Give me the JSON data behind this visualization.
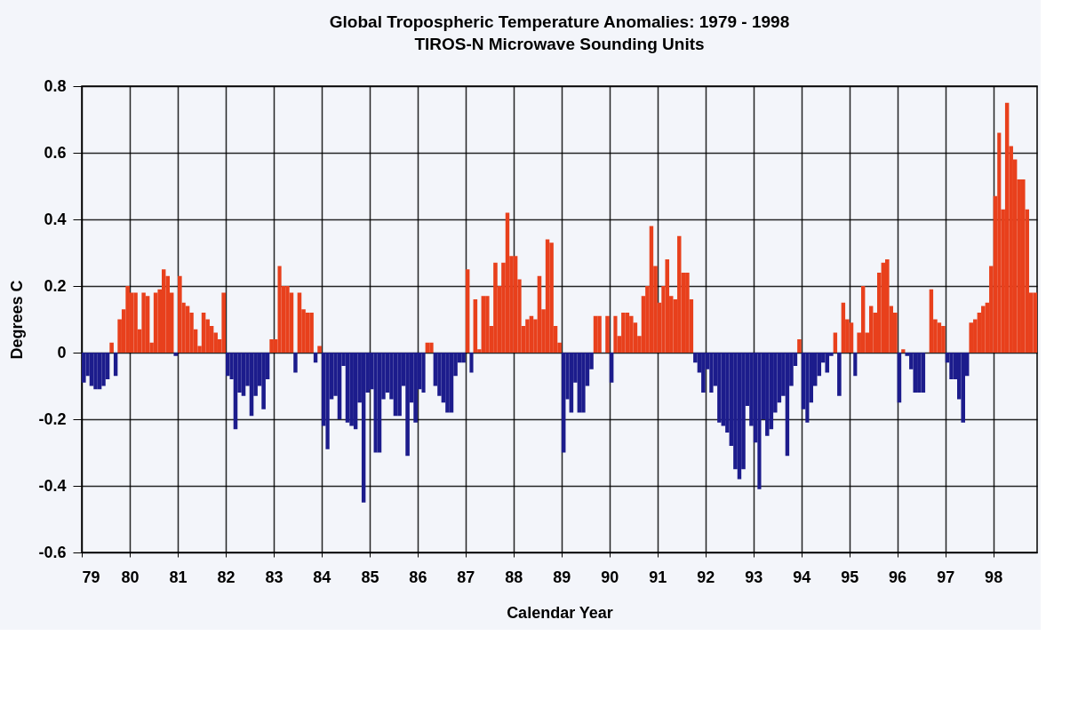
{
  "chart_data": {
    "type": "bar",
    "title": "Global  Tropospheric Temperature Anomalies: 1979 - 1998",
    "subtitle": "TIROS-N Microwave Sounding Units",
    "xlabel": "Calendar Year",
    "ylabel": "Degrees C",
    "x": [
      "1979-01",
      "1979-02",
      "1979-03",
      "1979-04",
      "1979-05",
      "1979-06",
      "1979-07",
      "1979-08",
      "1979-09",
      "1979-10",
      "1979-11",
      "1979-12",
      "1980-01",
      "1980-02",
      "1980-03",
      "1980-04",
      "1980-05",
      "1980-06",
      "1980-07",
      "1980-08",
      "1980-09",
      "1980-10",
      "1980-11",
      "1980-12",
      "1981-01",
      "1981-02",
      "1981-03",
      "1981-04",
      "1981-05",
      "1981-06",
      "1981-07",
      "1981-08",
      "1981-09",
      "1981-10",
      "1981-11",
      "1981-12",
      "1982-01",
      "1982-02",
      "1982-03",
      "1982-04",
      "1982-05",
      "1982-06",
      "1982-07",
      "1982-08",
      "1982-09",
      "1982-10",
      "1982-11",
      "1982-12",
      "1983-01",
      "1983-02",
      "1983-03",
      "1983-04",
      "1983-05",
      "1983-06",
      "1983-07",
      "1983-08",
      "1983-09",
      "1983-10",
      "1983-11",
      "1983-12",
      "1984-01",
      "1984-02",
      "1984-03",
      "1984-04",
      "1984-05",
      "1984-06",
      "1984-07",
      "1984-08",
      "1984-09",
      "1984-10",
      "1984-11",
      "1984-12",
      "1985-01",
      "1985-02",
      "1985-03",
      "1985-04",
      "1985-05",
      "1985-06",
      "1985-07",
      "1985-08",
      "1985-09",
      "1985-10",
      "1985-11",
      "1985-12",
      "1986-01",
      "1986-02",
      "1986-03",
      "1986-04",
      "1986-05",
      "1986-06",
      "1986-07",
      "1986-08",
      "1986-09",
      "1986-10",
      "1986-11",
      "1986-12",
      "1987-01",
      "1987-02",
      "1987-03",
      "1987-04",
      "1987-05",
      "1987-06",
      "1987-07",
      "1987-08",
      "1987-09",
      "1987-10",
      "1987-11",
      "1987-12",
      "1988-01",
      "1988-02",
      "1988-03",
      "1988-04",
      "1988-05",
      "1988-06",
      "1988-07",
      "1988-08",
      "1988-09",
      "1988-10",
      "1988-11",
      "1988-12",
      "1989-01",
      "1989-02",
      "1989-03",
      "1989-04",
      "1989-05",
      "1989-06",
      "1989-07",
      "1989-08",
      "1989-09",
      "1989-10",
      "1989-11",
      "1989-12",
      "1990-01",
      "1990-02",
      "1990-03",
      "1990-04",
      "1990-05",
      "1990-06",
      "1990-07",
      "1990-08",
      "1990-09",
      "1990-10",
      "1990-11",
      "1990-12",
      "1991-01",
      "1991-02",
      "1991-03",
      "1991-04",
      "1991-05",
      "1991-06",
      "1991-07",
      "1991-08",
      "1991-09",
      "1991-10",
      "1991-11",
      "1991-12",
      "1992-01",
      "1992-02",
      "1992-03",
      "1992-04",
      "1992-05",
      "1992-06",
      "1992-07",
      "1992-08",
      "1992-09",
      "1992-10",
      "1992-11",
      "1992-12",
      "1993-01",
      "1993-02",
      "1993-03",
      "1993-04",
      "1993-05",
      "1993-06",
      "1993-07",
      "1993-08",
      "1993-09",
      "1993-10",
      "1993-11",
      "1993-12",
      "1994-01",
      "1994-02",
      "1994-03",
      "1994-04",
      "1994-05",
      "1994-06",
      "1994-07",
      "1994-08",
      "1994-09",
      "1994-10",
      "1994-11",
      "1994-12",
      "1995-01",
      "1995-02",
      "1995-03",
      "1995-04",
      "1995-05",
      "1995-06",
      "1995-07",
      "1995-08",
      "1995-09",
      "1995-10",
      "1995-11",
      "1995-12",
      "1996-01",
      "1996-02",
      "1996-03",
      "1996-04",
      "1996-05",
      "1996-06",
      "1996-07",
      "1996-08",
      "1996-09",
      "1996-10",
      "1996-11",
      "1996-12",
      "1997-01",
      "1997-02",
      "1997-03",
      "1997-04",
      "1997-05",
      "1997-06",
      "1997-07",
      "1997-08",
      "1997-09",
      "1997-10",
      "1997-11",
      "1997-12",
      "1998-01",
      "1998-02",
      "1998-03",
      "1998-04",
      "1998-05",
      "1998-06",
      "1998-07",
      "1998-08",
      "1998-09",
      "1998-10",
      "1998-11"
    ],
    "values": [
      -0.09,
      -0.07,
      -0.1,
      -0.11,
      -0.11,
      -0.1,
      -0.08,
      0.03,
      -0.07,
      0.1,
      0.13,
      0.2,
      0.18,
      0.18,
      0.07,
      0.18,
      0.17,
      0.03,
      0.18,
      0.19,
      0.25,
      0.23,
      0.18,
      -0.01,
      0.23,
      0.15,
      0.14,
      0.12,
      0.07,
      0.02,
      0.12,
      0.1,
      0.08,
      0.06,
      0.04,
      0.18,
      -0.07,
      -0.08,
      -0.23,
      -0.12,
      -0.13,
      -0.1,
      -0.19,
      -0.13,
      -0.1,
      -0.17,
      -0.08,
      0.04,
      0.04,
      0.26,
      0.2,
      0.2,
      0.18,
      -0.06,
      0.18,
      0.13,
      0.12,
      0.12,
      -0.03,
      0.02,
      -0.22,
      -0.29,
      -0.14,
      -0.13,
      -0.2,
      -0.04,
      -0.21,
      -0.22,
      -0.23,
      -0.15,
      -0.45,
      -0.12,
      -0.11,
      -0.3,
      -0.3,
      -0.14,
      -0.12,
      -0.14,
      -0.19,
      -0.19,
      -0.1,
      -0.31,
      -0.15,
      -0.21,
      -0.11,
      -0.12,
      0.03,
      0.03,
      -0.1,
      -0.13,
      -0.15,
      -0.18,
      -0.18,
      -0.07,
      -0.03,
      -0.03,
      0.25,
      -0.06,
      0.16,
      0.01,
      0.17,
      0.17,
      0.08,
      0.27,
      0.2,
      0.27,
      0.42,
      0.29,
      0.29,
      0.22,
      0.08,
      0.1,
      0.11,
      0.1,
      0.23,
      0.13,
      0.34,
      0.33,
      0.08,
      0.03,
      -0.3,
      -0.14,
      -0.18,
      -0.09,
      -0.18,
      -0.18,
      -0.1,
      -0.05,
      0.11,
      0.11,
      0.0,
      0.11,
      -0.09,
      0.11,
      0.05,
      0.12,
      0.12,
      0.11,
      0.09,
      0.05,
      0.17,
      0.2,
      0.38,
      0.26,
      0.15,
      0.2,
      0.28,
      0.17,
      0.16,
      0.35,
      0.24,
      0.24,
      0.16,
      -0.03,
      -0.06,
      -0.12,
      -0.05,
      -0.12,
      -0.1,
      -0.21,
      -0.22,
      -0.24,
      -0.28,
      -0.35,
      -0.38,
      -0.35,
      -0.16,
      -0.22,
      -0.27,
      -0.41,
      -0.2,
      -0.25,
      -0.23,
      -0.18,
      -0.15,
      -0.13,
      -0.31,
      -0.1,
      -0.04,
      0.04,
      -0.17,
      -0.21,
      -0.15,
      -0.1,
      -0.07,
      -0.03,
      -0.06,
      -0.01,
      0.06,
      -0.13,
      0.15,
      0.1,
      0.09,
      -0.07,
      0.06,
      0.2,
      0.06,
      0.14,
      0.12,
      0.24,
      0.27,
      0.28,
      0.14,
      0.12,
      -0.15,
      0.01,
      -0.01,
      -0.05,
      -0.12,
      -0.12,
      -0.12,
      0.0,
      0.19,
      0.1,
      0.09,
      0.08,
      -0.03,
      -0.08,
      -0.08,
      -0.14,
      -0.21,
      -0.07,
      0.09,
      0.1,
      0.12,
      0.14,
      0.15,
      0.26,
      0.47,
      0.66,
      0.43,
      0.75,
      0.62,
      0.58,
      0.52,
      0.52,
      0.43,
      0.18,
      0.18
    ],
    "colors": [
      "#1c1c8c",
      "#1c1c8c",
      "#1c1c8c",
      "#1c1c8c",
      "#1c1c8c",
      "#1c1c8c",
      "#1c1c8c",
      "#e8401c",
      "#1c1c8c",
      "#e8401c",
      "#e8401c",
      "#e8401c",
      "#e8401c",
      "#e8401c",
      "#e8401c",
      "#e8401c",
      "#e8401c",
      "#e8401c",
      "#e8401c",
      "#e8401c",
      "#e8401c",
      "#e8401c",
      "#e8401c",
      "#1c1c8c",
      "#e8401c",
      "#e8401c",
      "#e8401c",
      "#e8401c",
      "#e8401c",
      "#e8401c",
      "#e8401c",
      "#e8401c",
      "#e8401c",
      "#e8401c",
      "#e8401c",
      "#e8401c",
      "#1c1c8c",
      "#1c1c8c",
      "#1c1c8c",
      "#1c1c8c",
      "#1c1c8c",
      "#1c1c8c",
      "#1c1c8c",
      "#1c1c8c",
      "#1c1c8c",
      "#1c1c8c",
      "#1c1c8c",
      "#e8401c",
      "#e8401c",
      "#e8401c",
      "#e8401c",
      "#e8401c",
      "#e8401c",
      "#1c1c8c",
      "#e8401c",
      "#e8401c",
      "#e8401c",
      "#e8401c",
      "#1c1c8c",
      "#e8401c",
      "#1c1c8c",
      "#1c1c8c",
      "#1c1c8c",
      "#1c1c8c",
      "#1c1c8c",
      "#1c1c8c",
      "#1c1c8c",
      "#1c1c8c",
      "#1c1c8c",
      "#1c1c8c",
      "#1c1c8c",
      "#1c1c8c",
      "#1c1c8c",
      "#1c1c8c",
      "#1c1c8c",
      "#1c1c8c",
      "#1c1c8c",
      "#1c1c8c",
      "#1c1c8c",
      "#1c1c8c",
      "#1c1c8c",
      "#1c1c8c",
      "#1c1c8c",
      "#1c1c8c",
      "#1c1c8c",
      "#1c1c8c",
      "#e8401c",
      "#e8401c",
      "#1c1c8c",
      "#1c1c8c",
      "#1c1c8c",
      "#1c1c8c",
      "#1c1c8c",
      "#1c1c8c",
      "#1c1c8c",
      "#1c1c8c",
      "#e8401c",
      "#1c1c8c",
      "#e8401c",
      "#e8401c",
      "#e8401c",
      "#e8401c",
      "#e8401c",
      "#e8401c",
      "#e8401c",
      "#e8401c",
      "#e8401c",
      "#e8401c",
      "#e8401c",
      "#e8401c",
      "#e8401c",
      "#e8401c",
      "#e8401c",
      "#e8401c",
      "#e8401c",
      "#e8401c",
      "#e8401c",
      "#e8401c",
      "#e8401c",
      "#e8401c",
      "#1c1c8c",
      "#1c1c8c",
      "#1c1c8c",
      "#1c1c8c",
      "#1c1c8c",
      "#1c1c8c",
      "#1c1c8c",
      "#1c1c8c",
      "#e8401c",
      "#e8401c",
      "#e8401c",
      "#e8401c",
      "#1c1c8c",
      "#e8401c",
      "#e8401c",
      "#e8401c",
      "#e8401c",
      "#e8401c",
      "#e8401c",
      "#e8401c",
      "#e8401c",
      "#e8401c",
      "#e8401c",
      "#e8401c",
      "#e8401c",
      "#e8401c",
      "#e8401c",
      "#e8401c",
      "#e8401c",
      "#e8401c",
      "#e8401c",
      "#e8401c",
      "#e8401c",
      "#1c1c8c",
      "#1c1c8c",
      "#1c1c8c",
      "#1c1c8c",
      "#1c1c8c",
      "#1c1c8c",
      "#1c1c8c",
      "#1c1c8c",
      "#1c1c8c",
      "#1c1c8c",
      "#1c1c8c",
      "#1c1c8c",
      "#1c1c8c",
      "#1c1c8c",
      "#1c1c8c",
      "#1c1c8c",
      "#1c1c8c",
      "#1c1c8c",
      "#1c1c8c",
      "#1c1c8c",
      "#1c1c8c",
      "#1c1c8c",
      "#1c1c8c",
      "#1c1c8c",
      "#1c1c8c",
      "#1c1c8c",
      "#e8401c",
      "#1c1c8c",
      "#1c1c8c",
      "#1c1c8c",
      "#1c1c8c",
      "#1c1c8c",
      "#1c1c8c",
      "#1c1c8c",
      "#1c1c8c",
      "#e8401c",
      "#1c1c8c",
      "#e8401c",
      "#e8401c",
      "#e8401c",
      "#1c1c8c",
      "#e8401c",
      "#e8401c",
      "#e8401c",
      "#e8401c",
      "#e8401c",
      "#e8401c",
      "#e8401c",
      "#e8401c",
      "#e8401c",
      "#e8401c",
      "#1c1c8c",
      "#e8401c",
      "#1c1c8c",
      "#1c1c8c",
      "#1c1c8c",
      "#1c1c8c",
      "#1c1c8c",
      "#e8401c",
      "#e8401c",
      "#e8401c",
      "#e8401c",
      "#e8401c",
      "#1c1c8c",
      "#1c1c8c",
      "#1c1c8c",
      "#1c1c8c",
      "#1c1c8c",
      "#1c1c8c",
      "#e8401c",
      "#e8401c",
      "#e8401c",
      "#e8401c",
      "#e8401c",
      "#e8401c",
      "#e8401c",
      "#e8401c",
      "#e8401c",
      "#e8401c",
      "#e8401c",
      "#e8401c",
      "#e8401c",
      "#e8401c",
      "#e8401c",
      "#e8401c",
      "#e8401c"
    ],
    "xlim": [
      "1979-01",
      "1998-12"
    ],
    "xticks": [
      {
        "value": "1979",
        "label": "79"
      },
      {
        "value": "1980",
        "label": "80"
      },
      {
        "value": "1981",
        "label": "81"
      },
      {
        "value": "1982",
        "label": "82"
      },
      {
        "value": "1983",
        "label": "83"
      },
      {
        "value": "1984",
        "label": "84"
      },
      {
        "value": "1985",
        "label": "85"
      },
      {
        "value": "1986",
        "label": "86"
      },
      {
        "value": "1987",
        "label": "87"
      },
      {
        "value": "1988",
        "label": "88"
      },
      {
        "value": "1989",
        "label": "89"
      },
      {
        "value": "1990",
        "label": "90"
      },
      {
        "value": "1991",
        "label": "91"
      },
      {
        "value": "1992",
        "label": "92"
      },
      {
        "value": "1993",
        "label": "93"
      },
      {
        "value": "1994",
        "label": "94"
      },
      {
        "value": "1995",
        "label": "95"
      },
      {
        "value": "1996",
        "label": "96"
      },
      {
        "value": "1997",
        "label": "97"
      },
      {
        "value": "1998",
        "label": "98"
      }
    ],
    "ylim": [
      -0.6,
      0.8
    ],
    "yticks": [
      -0.6,
      -0.4,
      -0.2,
      0,
      0.2,
      0.4,
      0.6,
      0.8
    ],
    "grid": true
  }
}
